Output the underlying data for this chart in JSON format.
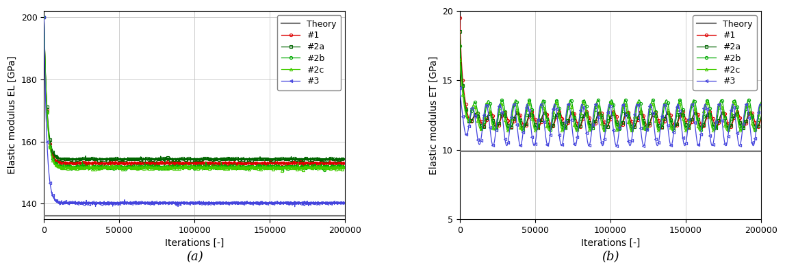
{
  "left": {
    "ylabel": "Elastic modulus EL [GPa]",
    "xlabel": "Iterations [-]",
    "label": "(a)",
    "ylim": [
      135,
      202
    ],
    "yticks": [
      140,
      160,
      180,
      200
    ],
    "xlim": [
      0,
      200000
    ],
    "xticks": [
      0,
      50000,
      100000,
      150000,
      200000
    ],
    "theory_value": 136.0,
    "series": {
      "#1": {
        "color": "#dd0000",
        "marker": "o",
        "final": 153.0,
        "start": 200,
        "tau": 2000,
        "noise": 0.25,
        "noise_start": 5000
      },
      "#2a": {
        "color": "#006600",
        "marker": "s",
        "final": 154.3,
        "start": 200,
        "tau": 2000,
        "noise": 0.2,
        "noise_start": 5000
      },
      "#2b": {
        "color": "#00aa00",
        "marker": "o",
        "final": 151.8,
        "start": 200,
        "tau": 2000,
        "noise": 0.3,
        "noise_start": 5000
      },
      "#2c": {
        "color": "#44cc00",
        "marker": "^",
        "final": 151.5,
        "start": 200,
        "tau": 2000,
        "noise": 0.25,
        "noise_start": 5000
      },
      "#3": {
        "color": "#4444dd",
        "marker": "<",
        "final": 140.2,
        "start": 200,
        "tau": 1800,
        "noise": 0.2,
        "noise_start": 5000
      }
    }
  },
  "right": {
    "ylabel": "Elastic modulus ET [GPa]",
    "xlabel": "Iterations [-]",
    "label": "(b)",
    "ylim": [
      5,
      20
    ],
    "yticks": [
      5,
      10,
      15,
      20
    ],
    "xlim": [
      0,
      200000
    ],
    "xticks": [
      0,
      50000,
      100000,
      150000,
      200000
    ],
    "theory_value": 9.9,
    "series": {
      "#1": {
        "color": "#dd0000",
        "marker": "o",
        "final": 12.2,
        "amp": 0.55,
        "freq": 22,
        "start": 19.5,
        "tau": 2000,
        "phase": 0.0
      },
      "#2a": {
        "color": "#006600",
        "marker": "s",
        "final": 12.1,
        "amp": 0.55,
        "freq": 22,
        "start": 18.5,
        "tau": 2000,
        "phase": 0.5
      },
      "#2b": {
        "color": "#00aa00",
        "marker": "o",
        "final": 12.5,
        "amp": 1.1,
        "freq": 22,
        "start": 17.5,
        "tau": 2000,
        "phase": 1.0
      },
      "#2c": {
        "color": "#44cc00",
        "marker": "^",
        "final": 12.4,
        "amp": 1.0,
        "freq": 22,
        "start": 16.5,
        "tau": 2000,
        "phase": 1.5
      },
      "#3": {
        "color": "#4444dd",
        "marker": "<",
        "final": 11.8,
        "amp": 1.5,
        "freq": 22,
        "start": 14.5,
        "tau": 1500,
        "phase": 2.0
      }
    }
  },
  "background_color": "#ffffff",
  "grid_color": "#bbbbbb",
  "legend_fontsize": 9,
  "axis_fontsize": 10,
  "tick_fontsize": 9,
  "theory_color": "#777777",
  "marker_size": 3,
  "linewidth": 0.9
}
